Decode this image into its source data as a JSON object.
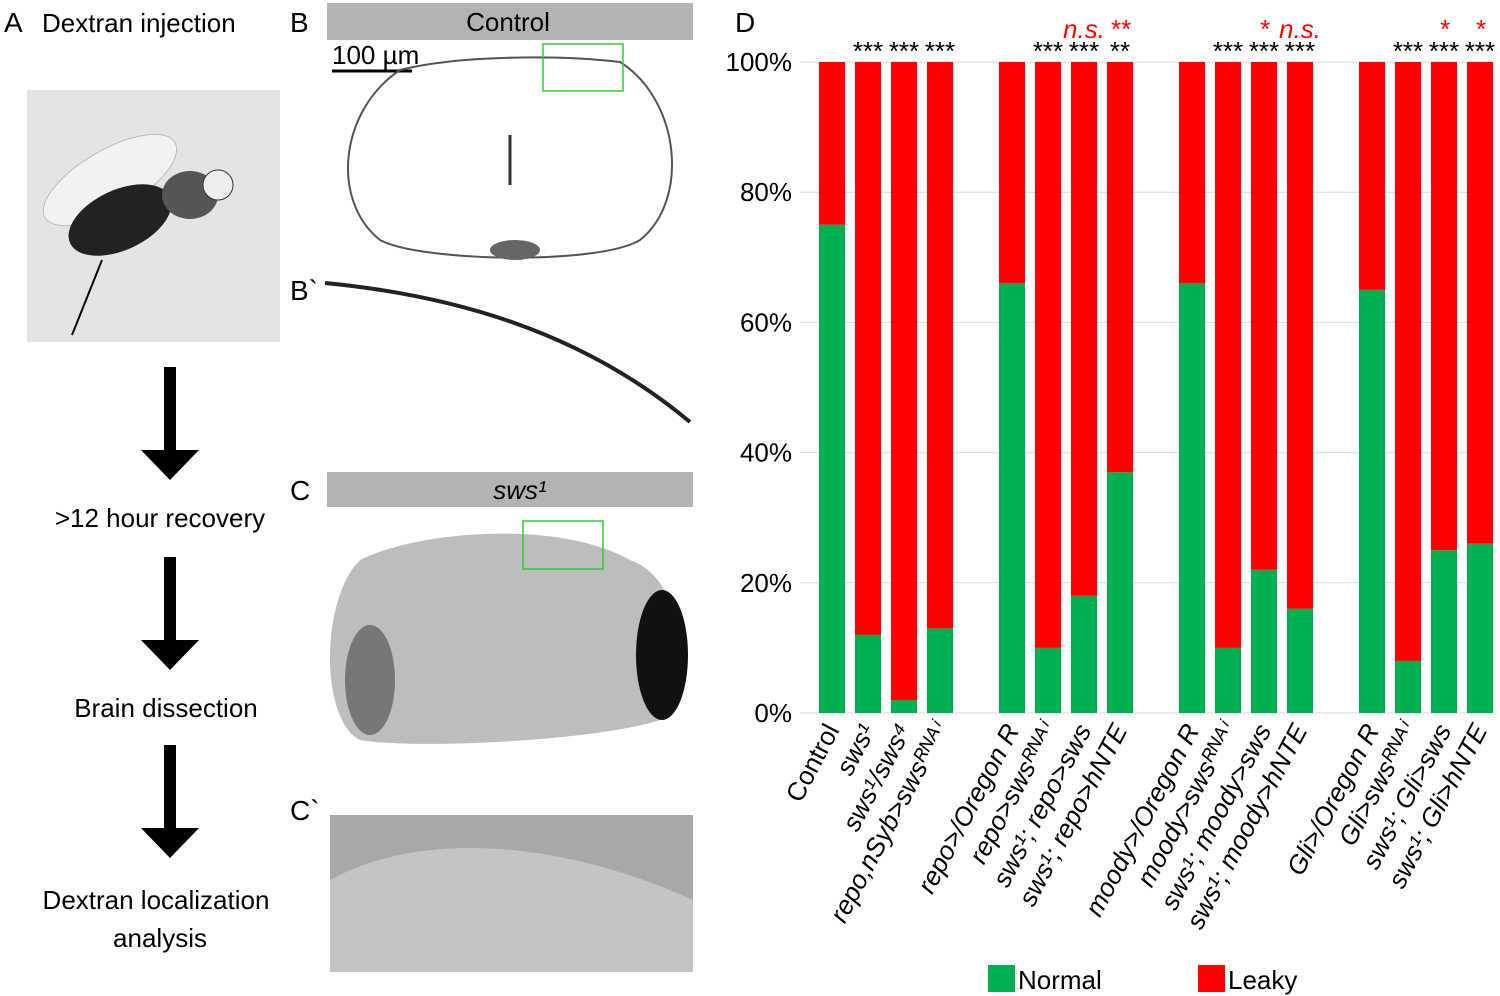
{
  "panel_a": {
    "label": "A",
    "title": "Dextran injection",
    "steps": [
      ">12 hour recovery",
      "Brain dissection"
    ],
    "final_step": [
      "Dextran localization",
      "analysis"
    ]
  },
  "panel_b": {
    "label": "B",
    "header": "Control",
    "scale_bar": "100 µm",
    "inset_label": "B`"
  },
  "panel_c": {
    "label": "C",
    "header": "sws¹",
    "inset_label": "C`"
  },
  "chart_data": {
    "type": "bar",
    "stacked": true,
    "panel_label": "D",
    "categories": [
      "Control",
      "sws¹",
      "sws¹/sws⁴",
      "repo,nSyb>swsᴿᴺᴬⁱ",
      "repo>/Oregon R",
      "repo>swsᴿᴺᴬⁱ",
      "sws¹; repo>sws",
      "sws¹; repo>hNTE",
      "moody>/Oregon R",
      "moody>swsᴿᴺᴬⁱ",
      "sws¹; moody>sws",
      "sws¹; moody>hNTE",
      "Gli>/Oregon R",
      "Gli>swsᴿᴺᴬⁱ",
      "sws¹; Gli>sws",
      "sws¹; Gli>hNTE"
    ],
    "series": [
      {
        "name": "Normal",
        "color": "#00b050",
        "values": [
          75,
          12,
          2,
          13,
          66,
          10,
          18,
          37,
          66,
          10,
          22,
          16,
          65,
          8,
          25,
          26
        ]
      },
      {
        "name": "Leaky",
        "color": "#ff0000",
        "values": [
          25,
          88,
          98,
          87,
          34,
          90,
          82,
          63,
          34,
          90,
          78,
          84,
          35,
          92,
          75,
          74
        ]
      }
    ],
    "significance_vs_control": [
      null,
      "***",
      "***",
      "***",
      null,
      "***",
      "***",
      "**",
      null,
      "***",
      "***",
      "***",
      null,
      "***",
      "***",
      "***"
    ],
    "significance_vs_sws1": [
      null,
      null,
      null,
      null,
      null,
      null,
      "n.s.",
      "**",
      null,
      null,
      "*",
      "n.s.",
      null,
      null,
      "*",
      "*"
    ],
    "ylim": [
      0,
      100
    ],
    "yticks": [
      {
        "value": 0,
        "label": "0%"
      },
      {
        "value": 20,
        "label": "20%"
      },
      {
        "value": 40,
        "label": "40%"
      },
      {
        "value": 60,
        "label": "60%"
      },
      {
        "value": 80,
        "label": "80%"
      },
      {
        "value": 100,
        "label": "100%"
      }
    ],
    "grid": true,
    "legend": "bottom"
  }
}
